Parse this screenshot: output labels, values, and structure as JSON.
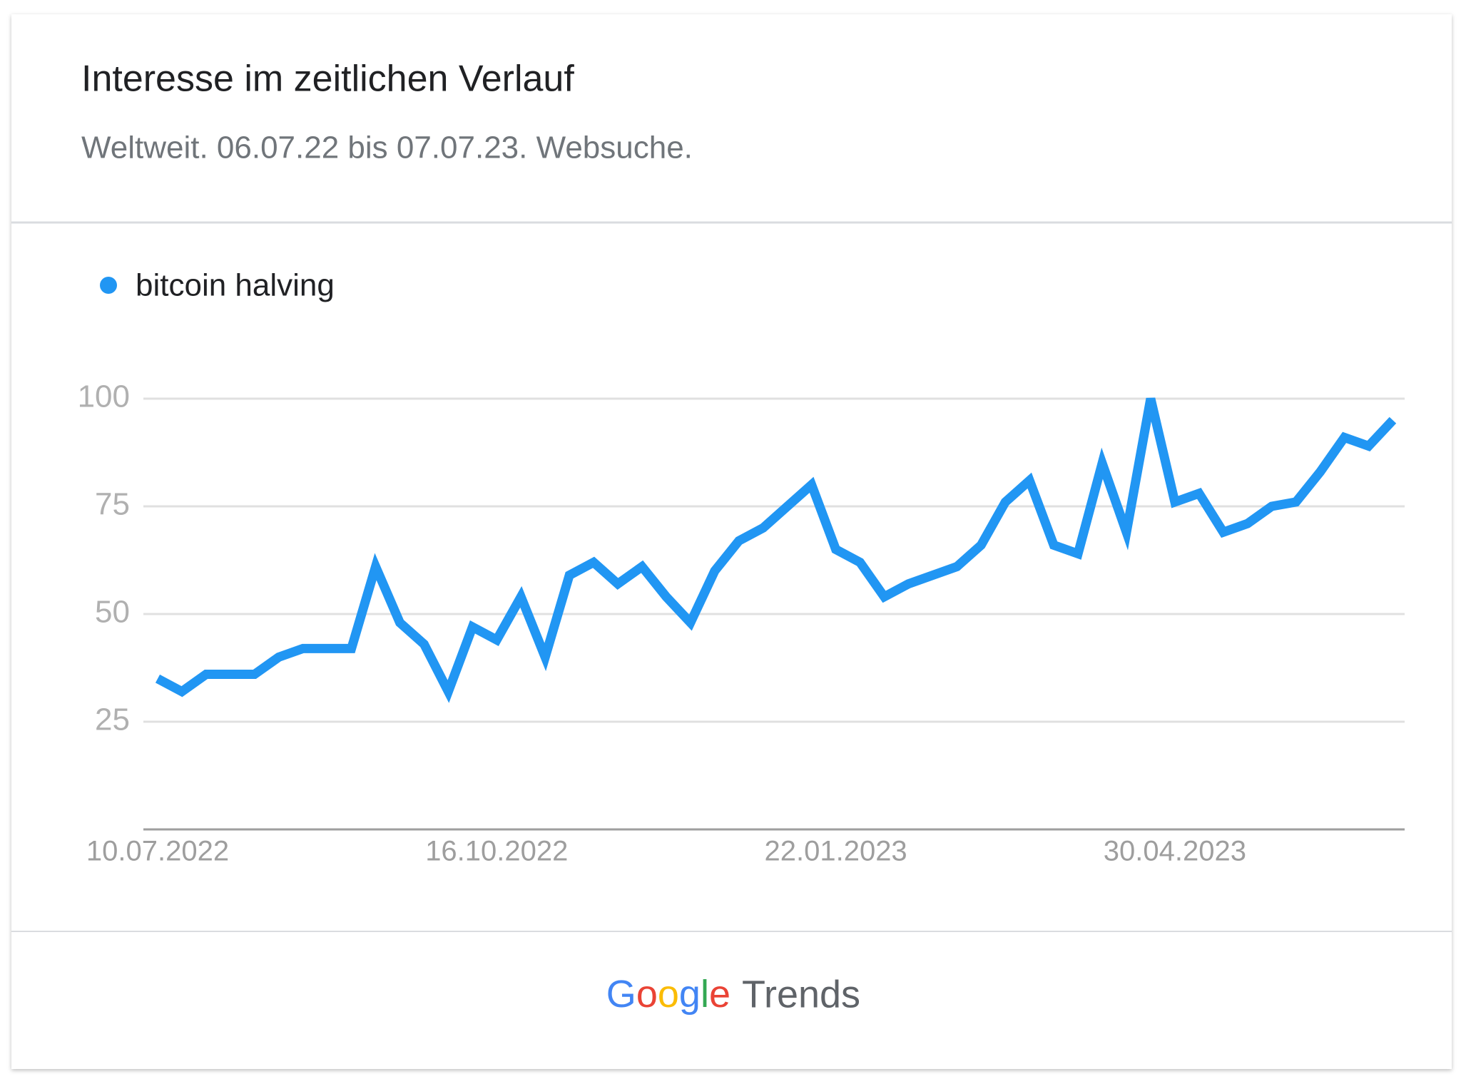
{
  "chart_data": {
    "type": "line",
    "title": "Interesse im zeitlichen Verlauf",
    "subtitle": "Weltweit. 06.07.22 bis 07.07.23. Websuche.",
    "categories": [
      "10.07.2022",
      null,
      null,
      null,
      null,
      null,
      null,
      null,
      null,
      null,
      null,
      null,
      null,
      null,
      "16.10.2022",
      null,
      null,
      null,
      null,
      null,
      null,
      null,
      null,
      null,
      null,
      null,
      null,
      null,
      "22.01.2023",
      null,
      null,
      null,
      null,
      null,
      null,
      null,
      null,
      null,
      null,
      null,
      null,
      null,
      "30.04.2023",
      null,
      null,
      null,
      null,
      null,
      null,
      null,
      null,
      null
    ],
    "series": [
      {
        "name": "bitcoin halving",
        "color": "#2196f3",
        "values": [
          35,
          32,
          36,
          36,
          36,
          40,
          42,
          42,
          42,
          61,
          48,
          43,
          32,
          47,
          44,
          54,
          40,
          59,
          62,
          57,
          61,
          54,
          48,
          60,
          67,
          70,
          75,
          80,
          65,
          62,
          54,
          57,
          59,
          61,
          66,
          76,
          81,
          66,
          64,
          85,
          69,
          100,
          76,
          78,
          69,
          71,
          75,
          76,
          83,
          91,
          89,
          95
        ]
      }
    ],
    "ylim": [
      0,
      100
    ],
    "yticks": [
      25,
      50,
      75,
      100
    ],
    "grid": true
  },
  "footer": {
    "brand": "Google",
    "product": "Trends"
  }
}
